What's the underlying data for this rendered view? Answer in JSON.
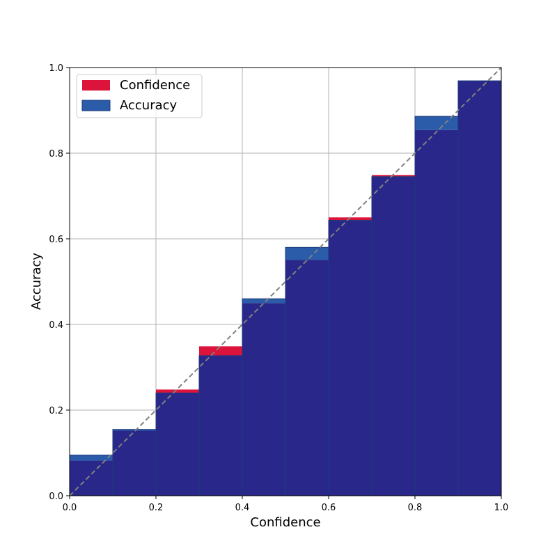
{
  "chart_data": {
    "type": "bar",
    "xlabel": "Confidence",
    "ylabel": "Accuracy",
    "xlim": [
      0,
      1
    ],
    "ylim": [
      0,
      1
    ],
    "x_ticks": [
      "0.0",
      "0.2",
      "0.4",
      "0.6",
      "0.8",
      "1.0"
    ],
    "y_ticks": [
      "0.0",
      "0.2",
      "0.4",
      "0.6",
      "0.8",
      "1.0"
    ],
    "grid": true,
    "legend_position": "top-left",
    "bin_edges": [
      0.0,
      0.1,
      0.2,
      0.3,
      0.4,
      0.5,
      0.6,
      0.7,
      0.8,
      0.9,
      1.0
    ],
    "series": [
      {
        "name": "Confidence",
        "color": "#dc143c",
        "values": [
          0.082,
          0.152,
          0.248,
          0.349,
          0.45,
          0.551,
          0.65,
          0.749,
          0.854,
          0.969
        ]
      },
      {
        "name": "Accuracy",
        "color": "#2a5caa",
        "values": [
          0.095,
          0.155,
          0.24,
          0.327,
          0.46,
          0.58,
          0.643,
          0.745,
          0.886,
          0.969
        ]
      }
    ],
    "overlap_color": "#29288a",
    "reference_line": {
      "from": [
        0,
        0
      ],
      "to": [
        1,
        1
      ],
      "style": "dashed",
      "color": "#808080"
    }
  }
}
